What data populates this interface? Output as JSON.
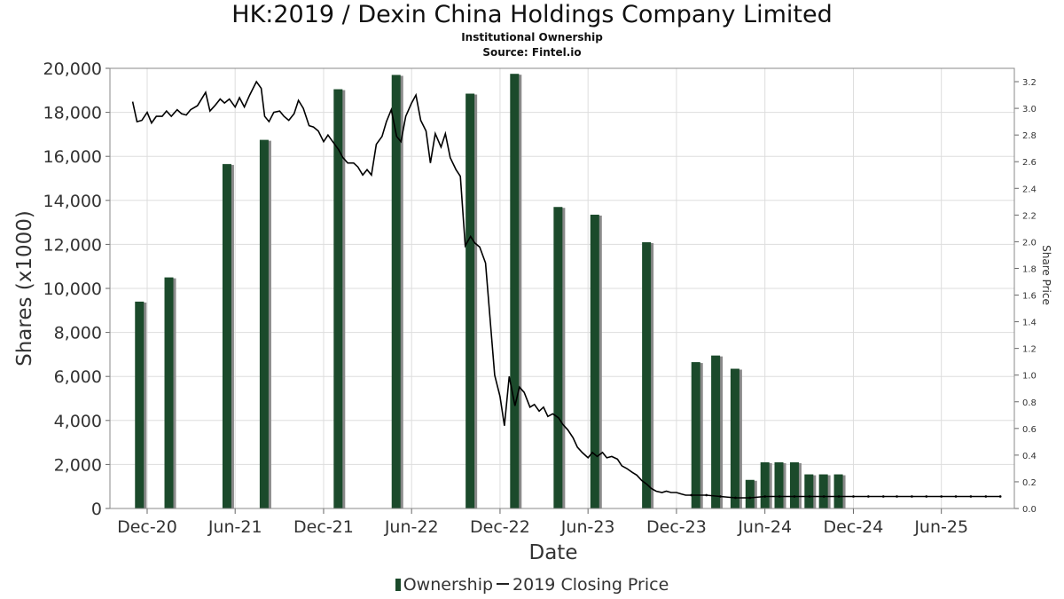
{
  "chart_data": {
    "type": "bar",
    "title": "HK:2019 / Dexin China Holdings Company Limited",
    "subtitle_lines": [
      "Institutional Ownership",
      "Source: Fintel.io"
    ],
    "xlabel": "Date",
    "ylabel": "Shares (x1000)",
    "ylabel_right": "Share Price",
    "ylim": [
      0,
      20000
    ],
    "ylim_right": [
      0,
      3.3
    ],
    "xlim": [
      "2020-09-15",
      "2025-10-30"
    ],
    "y_ticks": [
      0,
      2000,
      4000,
      6000,
      8000,
      10000,
      12000,
      14000,
      16000,
      18000,
      20000
    ],
    "y_tick_labels": [
      "0",
      "2,000",
      "4,000",
      "6,000",
      "8,000",
      "10,000",
      "12,000",
      "14,000",
      "16,000",
      "18,000",
      "20,000"
    ],
    "y_right_ticks": [
      0.0,
      0.2,
      0.4,
      0.6,
      0.8,
      1.0,
      1.2,
      1.4,
      1.6,
      1.8,
      2.0,
      2.2,
      2.4,
      2.6,
      2.8,
      3.0,
      3.2
    ],
    "y_right_tick_labels": [
      "0.0",
      "0.2",
      "0.4",
      "0.6",
      "0.8",
      "1.0",
      "1.2",
      "1.4",
      "1.6",
      "1.8",
      "2.0",
      "2.2",
      "2.4",
      "2.6",
      "2.8",
      "3.0",
      "3.2"
    ],
    "x_ticks": [
      "2020-12-01",
      "2021-06-01",
      "2021-12-01",
      "2022-06-01",
      "2022-12-01",
      "2023-06-01",
      "2023-12-01",
      "2024-06-01",
      "2024-12-01",
      "2025-06-01"
    ],
    "x_tick_labels": [
      "Dec-20",
      "Jun-21",
      "Dec-21",
      "Jun-22",
      "Dec-22",
      "Jun-23",
      "Dec-23",
      "Jun-24",
      "Dec-24",
      "Jun-25"
    ],
    "grid": true,
    "legend_position": "bottom",
    "series": [
      {
        "name": "Ownership",
        "type": "bar",
        "color": "#1b4a2b",
        "axis": "left",
        "points": [
          [
            "2020-11-15",
            9400
          ],
          [
            "2021-01-15",
            10500
          ],
          [
            "2021-05-15",
            15650
          ],
          [
            "2021-07-31",
            16750
          ],
          [
            "2021-12-31",
            19050
          ],
          [
            "2022-04-30",
            19700
          ],
          [
            "2022-09-30",
            18850
          ],
          [
            "2022-12-31",
            19750
          ],
          [
            "2023-03-31",
            13700
          ],
          [
            "2023-06-15",
            13350
          ],
          [
            "2023-09-30",
            12100
          ],
          [
            "2024-01-10",
            6650
          ],
          [
            "2024-02-20",
            6950
          ],
          [
            "2024-03-31",
            6350
          ],
          [
            "2024-05-01",
            1300
          ],
          [
            "2024-06-01",
            2100
          ],
          [
            "2024-06-30",
            2100
          ],
          [
            "2024-08-01",
            2100
          ],
          [
            "2024-08-31",
            1550
          ],
          [
            "2024-09-30",
            1550
          ],
          [
            "2024-10-31",
            1550
          ]
        ]
      },
      {
        "name": "2019 Closing Price",
        "type": "line",
        "color": "#000000",
        "axis": "right",
        "points": [
          [
            "2020-11-01",
            3.05
          ],
          [
            "2020-11-10",
            2.9
          ],
          [
            "2020-11-20",
            2.91
          ],
          [
            "2020-12-01",
            2.97
          ],
          [
            "2020-12-10",
            2.89
          ],
          [
            "2020-12-20",
            2.94
          ],
          [
            "2021-01-01",
            2.94
          ],
          [
            "2021-01-10",
            2.98
          ],
          [
            "2021-01-20",
            2.94
          ],
          [
            "2021-02-01",
            2.99
          ],
          [
            "2021-02-10",
            2.96
          ],
          [
            "2021-02-20",
            2.95
          ],
          [
            "2021-03-01",
            2.99
          ],
          [
            "2021-03-15",
            3.02
          ],
          [
            "2021-04-01",
            3.12
          ],
          [
            "2021-04-10",
            2.98
          ],
          [
            "2021-04-20",
            3.02
          ],
          [
            "2021-05-01",
            3.07
          ],
          [
            "2021-05-10",
            3.04
          ],
          [
            "2021-05-20",
            3.07
          ],
          [
            "2021-06-01",
            3.01
          ],
          [
            "2021-06-10",
            3.08
          ],
          [
            "2021-06-20",
            3.01
          ],
          [
            "2021-07-01",
            3.1
          ],
          [
            "2021-07-15",
            3.2
          ],
          [
            "2021-07-25",
            3.15
          ],
          [
            "2021-08-01",
            2.94
          ],
          [
            "2021-08-10",
            2.9
          ],
          [
            "2021-08-20",
            2.97
          ],
          [
            "2021-09-01",
            2.98
          ],
          [
            "2021-09-10",
            2.94
          ],
          [
            "2021-09-20",
            2.91
          ],
          [
            "2021-10-01",
            2.96
          ],
          [
            "2021-10-10",
            3.06
          ],
          [
            "2021-10-20",
            3.0
          ],
          [
            "2021-11-01",
            2.87
          ],
          [
            "2021-11-10",
            2.86
          ],
          [
            "2021-11-20",
            2.83
          ],
          [
            "2021-12-01",
            2.75
          ],
          [
            "2021-12-10",
            2.8
          ],
          [
            "2021-12-20",
            2.75
          ],
          [
            "2022-01-01",
            2.69
          ],
          [
            "2022-01-10",
            2.63
          ],
          [
            "2022-01-20",
            2.59
          ],
          [
            "2022-02-01",
            2.59
          ],
          [
            "2022-02-10",
            2.56
          ],
          [
            "2022-02-20",
            2.5
          ],
          [
            "2022-03-01",
            2.54
          ],
          [
            "2022-03-10",
            2.5
          ],
          [
            "2022-03-20",
            2.73
          ],
          [
            "2022-04-01",
            2.79
          ],
          [
            "2022-04-10",
            2.9
          ],
          [
            "2022-04-20",
            2.99
          ],
          [
            "2022-05-01",
            2.79
          ],
          [
            "2022-05-10",
            2.75
          ],
          [
            "2022-05-20",
            2.94
          ],
          [
            "2022-06-01",
            3.04
          ],
          [
            "2022-06-10",
            3.1
          ],
          [
            "2022-06-20",
            2.91
          ],
          [
            "2022-07-01",
            2.83
          ],
          [
            "2022-07-10",
            2.59
          ],
          [
            "2022-07-20",
            2.81
          ],
          [
            "2022-08-01",
            2.71
          ],
          [
            "2022-08-10",
            2.81
          ],
          [
            "2022-08-20",
            2.63
          ],
          [
            "2022-09-01",
            2.54
          ],
          [
            "2022-09-10",
            2.49
          ],
          [
            "2022-09-20",
            1.97
          ],
          [
            "2022-10-01",
            2.04
          ],
          [
            "2022-10-10",
            1.99
          ],
          [
            "2022-10-20",
            1.96
          ],
          [
            "2022-11-01",
            1.84
          ],
          [
            "2022-11-10",
            1.44
          ],
          [
            "2022-11-20",
            1.0
          ],
          [
            "2022-12-01",
            0.84
          ],
          [
            "2022-12-10",
            0.62
          ],
          [
            "2022-12-20",
            0.99
          ],
          [
            "2023-01-01",
            0.77
          ],
          [
            "2023-01-10",
            0.91
          ],
          [
            "2023-01-20",
            0.87
          ],
          [
            "2023-02-01",
            0.76
          ],
          [
            "2023-02-10",
            0.78
          ],
          [
            "2023-02-20",
            0.73
          ],
          [
            "2023-03-01",
            0.76
          ],
          [
            "2023-03-10",
            0.69
          ],
          [
            "2023-03-20",
            0.71
          ],
          [
            "2023-04-01",
            0.68
          ],
          [
            "2023-04-10",
            0.63
          ],
          [
            "2023-04-20",
            0.59
          ],
          [
            "2023-05-01",
            0.53
          ],
          [
            "2023-05-10",
            0.46
          ],
          [
            "2023-05-20",
            0.42
          ],
          [
            "2023-06-01",
            0.38
          ],
          [
            "2023-06-10",
            0.42
          ],
          [
            "2023-06-20",
            0.39
          ],
          [
            "2023-07-01",
            0.42
          ],
          [
            "2023-07-10",
            0.38
          ],
          [
            "2023-07-20",
            0.39
          ],
          [
            "2023-08-01",
            0.37
          ],
          [
            "2023-08-10",
            0.32
          ],
          [
            "2023-08-20",
            0.3
          ],
          [
            "2023-09-01",
            0.27
          ],
          [
            "2023-09-10",
            0.25
          ],
          [
            "2023-09-20",
            0.21
          ],
          [
            "2023-10-01",
            0.18
          ],
          [
            "2023-10-10",
            0.15
          ],
          [
            "2023-10-20",
            0.13
          ],
          [
            "2023-11-01",
            0.12
          ],
          [
            "2023-11-10",
            0.13
          ],
          [
            "2023-11-20",
            0.12
          ],
          [
            "2023-12-01",
            0.12
          ],
          [
            "2023-12-10",
            0.11
          ],
          [
            "2023-12-20",
            0.1
          ],
          [
            "2024-01-01",
            0.1
          ],
          [
            "2024-02-01",
            0.1
          ],
          [
            "2024-03-01",
            0.09
          ],
          [
            "2024-04-01",
            0.08
          ],
          [
            "2024-05-01",
            0.08
          ],
          [
            "2024-06-01",
            0.09
          ],
          [
            "2024-07-01",
            0.09
          ],
          [
            "2024-08-01",
            0.09
          ],
          [
            "2024-09-01",
            0.09
          ],
          [
            "2024-10-01",
            0.09
          ],
          [
            "2024-11-01",
            0.09
          ],
          [
            "2024-12-01",
            0.09
          ],
          [
            "2025-01-01",
            0.09
          ],
          [
            "2025-02-01",
            0.09
          ],
          [
            "2025-03-01",
            0.09
          ],
          [
            "2025-04-01",
            0.09
          ],
          [
            "2025-05-01",
            0.09
          ],
          [
            "2025-06-01",
            0.09
          ],
          [
            "2025-07-01",
            0.09
          ],
          [
            "2025-08-01",
            0.09
          ],
          [
            "2025-09-01",
            0.09
          ],
          [
            "2025-10-01",
            0.09
          ]
        ]
      }
    ]
  }
}
